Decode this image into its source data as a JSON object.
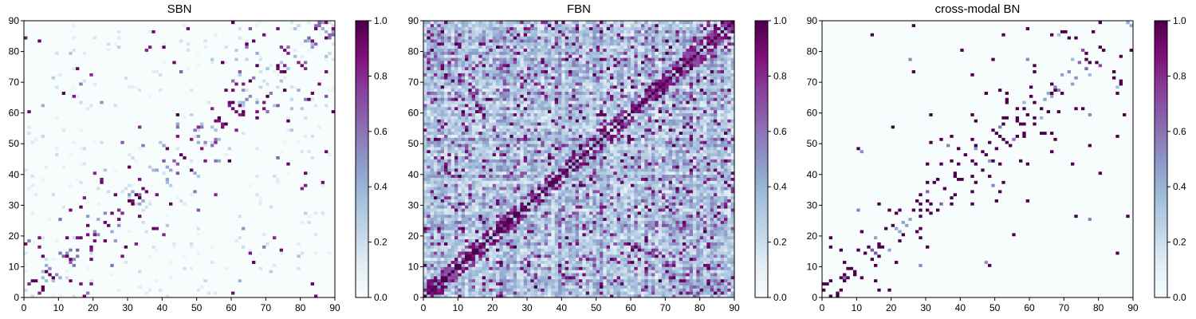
{
  "chart_data": [
    {
      "type": "heatmap",
      "title": "SBN",
      "xlim": [
        0,
        90
      ],
      "ylim": [
        0,
        90
      ],
      "x_ticks": [
        "0",
        "10",
        "20",
        "30",
        "40",
        "50",
        "60",
        "70",
        "80",
        "90"
      ],
      "y_ticks": [
        "0",
        "10",
        "20",
        "30",
        "40",
        "50",
        "60",
        "70",
        "80",
        "90"
      ],
      "colorbar": {
        "range": [
          0.0,
          1.0
        ],
        "ticks": [
          "0.0",
          "0.2",
          "0.4",
          "0.6",
          "0.8",
          "1.0"
        ]
      },
      "colormap": "BuPu",
      "pattern": "sparse, symmetric, near-diagonal blocks",
      "seed": 11
    },
    {
      "type": "heatmap",
      "title": "FBN",
      "xlim": [
        0,
        90
      ],
      "ylim": [
        0,
        90
      ],
      "x_ticks": [
        "0",
        "10",
        "20",
        "30",
        "40",
        "50",
        "60",
        "70",
        "80",
        "90"
      ],
      "y_ticks": [
        "0",
        "10",
        "20",
        "30",
        "40",
        "50",
        "60",
        "70",
        "80",
        "90"
      ],
      "colorbar": {
        "range": [
          0.0,
          1.0
        ],
        "ticks": [
          "0.0",
          "0.2",
          "0.4",
          "0.6",
          "0.8",
          "1.0"
        ]
      },
      "colormap": "BuPu",
      "pattern": "dense, symmetric, strong diagonal",
      "seed": 23
    },
    {
      "type": "heatmap",
      "title": "cross-modal BN",
      "xlim": [
        0,
        90
      ],
      "ylim": [
        0,
        90
      ],
      "x_ticks": [
        "0",
        "10",
        "20",
        "30",
        "40",
        "50",
        "60",
        "70",
        "80",
        "90"
      ],
      "y_ticks": [
        "0",
        "10",
        "20",
        "30",
        "40",
        "50",
        "60",
        "70",
        "80",
        "90"
      ],
      "colorbar": {
        "range": [
          0.0,
          1.0
        ],
        "ticks": [
          "0.0",
          "0.2",
          "0.4",
          "0.6",
          "0.8",
          "1.0"
        ]
      },
      "colormap": "BuPu",
      "pattern": "very sparse, symmetric, mostly binary",
      "seed": 37
    }
  ],
  "colors": {
    "colormap_stops": [
      "#f7fcfd",
      "#e0ecf4",
      "#bfd3e6",
      "#9ebcda",
      "#8c96c6",
      "#8c6bb1",
      "#88419d",
      "#810f7c",
      "#4d004b"
    ]
  }
}
